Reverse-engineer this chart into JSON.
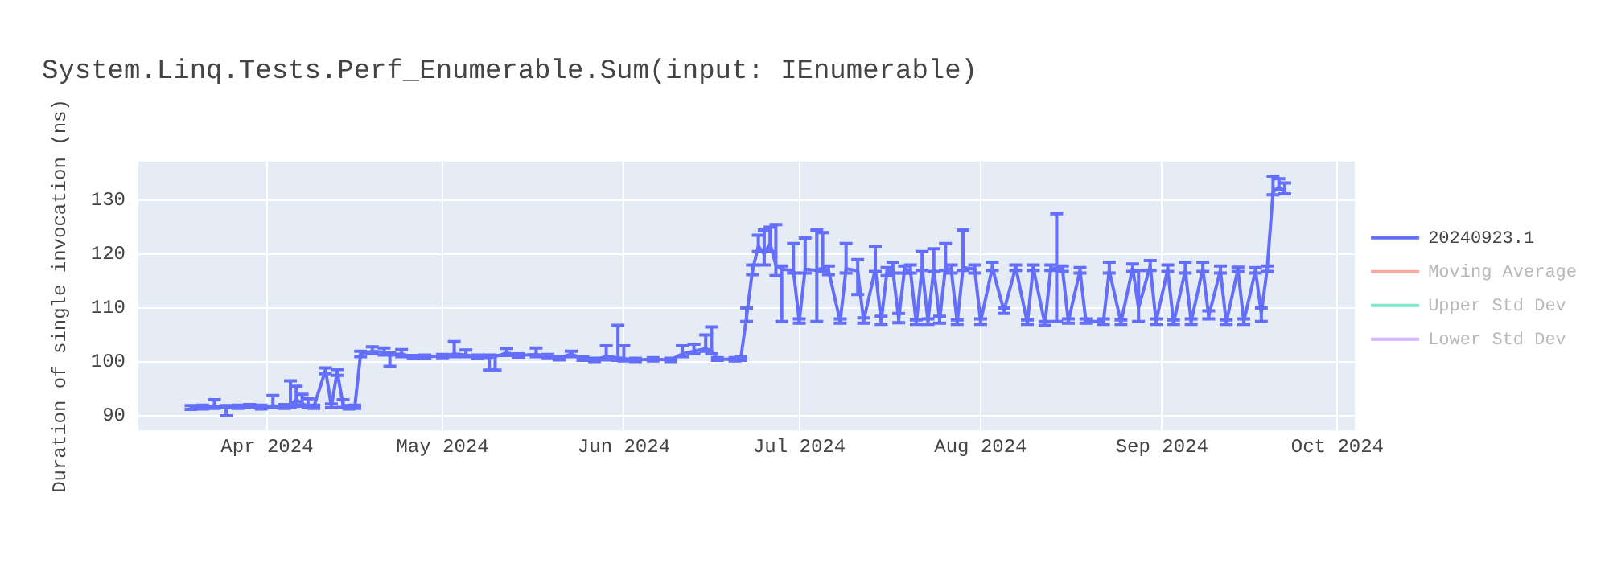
{
  "chart_data": {
    "type": "line",
    "title": "System.Linq.Tests.Perf_Enumerable.Sum(input: IEnumerable)",
    "ylabel": "Duration of single invocation (ns)",
    "xlim": [
      "2024-03-10",
      "2024-10-04"
    ],
    "xticks": [
      {
        "value": "2024-04-01",
        "label": "Apr 2024"
      },
      {
        "value": "2024-05-01",
        "label": "May 2024"
      },
      {
        "value": "2024-06-01",
        "label": "Jun 2024"
      },
      {
        "value": "2024-07-01",
        "label": "Jul 2024"
      },
      {
        "value": "2024-08-01",
        "label": "Aug 2024"
      },
      {
        "value": "2024-09-01",
        "label": "Sep 2024"
      },
      {
        "value": "2024-10-01",
        "label": "Oct 2024"
      }
    ],
    "ylim": [
      87.3,
      137.2
    ],
    "yticks": [
      90,
      100,
      110,
      120,
      130
    ],
    "grid": true,
    "legend": "top right",
    "marker": "none",
    "line_style": "solid",
    "x": [
      "2024-03-19",
      "2024-03-21",
      "2024-03-23",
      "2024-03-25",
      "2024-03-27",
      "2024-03-29",
      "2024-03-31",
      "2024-04-02",
      "2024-04-04",
      "2024-04-05",
      "2024-04-06",
      "2024-04-07",
      "2024-04-08",
      "2024-04-09",
      "2024-04-11",
      "2024-04-12",
      "2024-04-13",
      "2024-04-14",
      "2024-04-15",
      "2024-04-16",
      "2024-04-17",
      "2024-04-19",
      "2024-04-21",
      "2024-04-22",
      "2024-04-24",
      "2024-04-26",
      "2024-04-28",
      "2024-05-01",
      "2024-05-03",
      "2024-05-05",
      "2024-05-07",
      "2024-05-09",
      "2024-05-10",
      "2024-05-12",
      "2024-05-14",
      "2024-05-17",
      "2024-05-19",
      "2024-05-21",
      "2024-05-23",
      "2024-05-25",
      "2024-05-27",
      "2024-05-29",
      "2024-05-31",
      "2024-06-01",
      "2024-06-03",
      "2024-06-06",
      "2024-06-09",
      "2024-06-11",
      "2024-06-13",
      "2024-06-15",
      "2024-06-16",
      "2024-06-17",
      "2024-06-20",
      "2024-06-21",
      "2024-06-22",
      "2024-06-23",
      "2024-06-24",
      "2024-06-25",
      "2024-06-26",
      "2024-06-27",
      "2024-06-28",
      "2024-06-30",
      "2024-07-01",
      "2024-07-02",
      "2024-07-04",
      "2024-07-05",
      "2024-07-06",
      "2024-07-08",
      "2024-07-09",
      "2024-07-11",
      "2024-07-12",
      "2024-07-14",
      "2024-07-15",
      "2024-07-16",
      "2024-07-17",
      "2024-07-18",
      "2024-07-19",
      "2024-07-20",
      "2024-07-21",
      "2024-07-22",
      "2024-07-23",
      "2024-07-24",
      "2024-07-25",
      "2024-07-26",
      "2024-07-27",
      "2024-07-28",
      "2024-07-29",
      "2024-07-31",
      "2024-08-01",
      "2024-08-03",
      "2024-08-05",
      "2024-08-07",
      "2024-08-09",
      "2024-08-10",
      "2024-08-12",
      "2024-08-13",
      "2024-08-14",
      "2024-08-15",
      "2024-08-16",
      "2024-08-18",
      "2024-08-19",
      "2024-08-22",
      "2024-08-23",
      "2024-08-25",
      "2024-08-27",
      "2024-08-28",
      "2024-08-30",
      "2024-08-31",
      "2024-09-02",
      "2024-09-03",
      "2024-09-05",
      "2024-09-06",
      "2024-09-08",
      "2024-09-09",
      "2024-09-11",
      "2024-09-12",
      "2024-09-14",
      "2024-09-15",
      "2024-09-17",
      "2024-09-18",
      "2024-09-19",
      "2024-09-20",
      "2024-09-21",
      "2024-09-22"
    ],
    "series": [
      {
        "name": "20240923.1",
        "color": "#636efa",
        "values": [
          91.5,
          91.6,
          91.8,
          91.5,
          91.7,
          91.8,
          91.6,
          91.9,
          91.7,
          92.0,
          93.0,
          92.3,
          91.8,
          91.7,
          98.5,
          91.8,
          98.2,
          92.0,
          91.6,
          91.7,
          101.5,
          102.0,
          101.8,
          101.2,
          101.5,
          100.9,
          101.0,
          101.1,
          101.5,
          101.3,
          101.0,
          100.8,
          101.0,
          101.7,
          101.2,
          101.4,
          101.1,
          100.7,
          101.5,
          100.6,
          100.4,
          101.0,
          100.8,
          100.6,
          100.4,
          100.5,
          100.4,
          101.5,
          102.0,
          102.5,
          102.0,
          100.5,
          100.5,
          100.6,
          108.5,
          117.0,
          121.5,
          120.0,
          122.0,
          118.0,
          117.2,
          117.0,
          107.5,
          117.2,
          117.0,
          117.5,
          117.0,
          107.5,
          117.3,
          116.9,
          107.6,
          117.2,
          107.5,
          116.8,
          117.0,
          108.0,
          117.2,
          117.0,
          107.2,
          117.5,
          107.5,
          117.3,
          107.8,
          117.6,
          117.0,
          107.3,
          117.5,
          117.2,
          107.5,
          117.5,
          109.5,
          117.6,
          107.2,
          117.5,
          107.0,
          117.4,
          117.3,
          117.3,
          107.5,
          117.0,
          107.5,
          107.5,
          117.0,
          107.3,
          117.5,
          110.0,
          117.8,
          107.5,
          117.2,
          107.2,
          117.0,
          107.5,
          117.3,
          108.5,
          117.0,
          107.3,
          117.2,
          107.5,
          117.0,
          109.0,
          117.3,
          131.5,
          132.5,
          131.6
        ],
        "errors": [
          [
            91.2,
            91.9
          ],
          [
            91.3,
            92.0
          ],
          [
            91.4,
            93.0
          ],
          [
            90.0,
            91.9
          ],
          [
            91.4,
            92.0
          ],
          [
            91.5,
            92.1
          ],
          [
            91.3,
            92.0
          ],
          [
            91.5,
            93.8
          ],
          [
            91.4,
            92.1
          ],
          [
            91.6,
            96.5
          ],
          [
            92.0,
            95.5
          ],
          [
            91.8,
            94.0
          ],
          [
            91.5,
            93.2
          ],
          [
            91.4,
            92.0
          ],
          [
            97.8,
            98.9
          ],
          [
            91.5,
            92.2
          ],
          [
            97.5,
            98.6
          ],
          [
            91.6,
            93.0
          ],
          [
            91.3,
            91.9
          ],
          [
            91.4,
            92.0
          ],
          [
            101.0,
            102.0
          ],
          [
            101.5,
            102.8
          ],
          [
            101.3,
            102.6
          ],
          [
            99.2,
            101.8
          ],
          [
            101.0,
            102.3
          ],
          [
            100.6,
            101.2
          ],
          [
            100.7,
            101.3
          ],
          [
            100.8,
            101.4
          ],
          [
            101.0,
            103.8
          ],
          [
            101.0,
            102.2
          ],
          [
            100.7,
            101.3
          ],
          [
            98.5,
            101.3
          ],
          [
            98.5,
            101.2
          ],
          [
            101.2,
            102.5
          ],
          [
            100.9,
            101.5
          ],
          [
            101.0,
            102.6
          ],
          [
            100.8,
            101.4
          ],
          [
            100.4,
            101.0
          ],
          [
            101.0,
            102.0
          ],
          [
            100.3,
            100.9
          ],
          [
            100.1,
            100.7
          ],
          [
            100.4,
            103.0
          ],
          [
            100.3,
            106.8
          ],
          [
            100.2,
            103.0
          ],
          [
            100.1,
            100.7
          ],
          [
            100.2,
            100.8
          ],
          [
            100.1,
            100.7
          ],
          [
            101.0,
            103.0
          ],
          [
            101.5,
            103.3
          ],
          [
            102.0,
            105.0
          ],
          [
            101.5,
            106.5
          ],
          [
            100.3,
            100.8
          ],
          [
            100.2,
            100.8
          ],
          [
            100.3,
            100.9
          ],
          [
            107.5,
            110.0
          ],
          [
            116.2,
            118.0
          ],
          [
            120.5,
            123.5
          ],
          [
            118.0,
            124.5
          ],
          [
            120.5,
            125.0
          ],
          [
            116.0,
            125.5
          ],
          [
            107.5,
            117.8
          ],
          [
            116.5,
            122.0
          ],
          [
            107.2,
            108.0
          ],
          [
            116.5,
            123.0
          ],
          [
            107.5,
            124.5
          ],
          [
            116.8,
            124.0
          ],
          [
            116.2,
            117.8
          ],
          [
            107.2,
            108.0
          ],
          [
            116.5,
            122.0
          ],
          [
            112.5,
            119.0
          ],
          [
            107.2,
            108.2
          ],
          [
            116.8,
            121.5
          ],
          [
            107.0,
            108.5
          ],
          [
            116.0,
            117.5
          ],
          [
            116.5,
            118.5
          ],
          [
            107.3,
            109.0
          ],
          [
            116.5,
            117.8
          ],
          [
            116.5,
            118.0
          ],
          [
            107.0,
            107.8
          ],
          [
            117.0,
            120.5
          ],
          [
            107.0,
            108.0
          ],
          [
            116.8,
            121.0
          ],
          [
            107.2,
            108.5
          ],
          [
            117.0,
            122.0
          ],
          [
            116.5,
            118.0
          ],
          [
            107.0,
            107.8
          ],
          [
            117.0,
            124.5
          ],
          [
            116.5,
            118.0
          ],
          [
            107.0,
            108.0
          ],
          [
            117.0,
            118.5
          ],
          [
            109.0,
            110.0
          ],
          [
            117.0,
            118.0
          ],
          [
            107.0,
            107.8
          ],
          [
            117.0,
            118.0
          ],
          [
            106.8,
            107.5
          ],
          [
            117.0,
            118.0
          ],
          [
            107.5,
            127.5
          ],
          [
            116.8,
            117.8
          ],
          [
            107.2,
            108.0
          ],
          [
            116.5,
            117.5
          ],
          [
            107.2,
            108.0
          ],
          [
            107.0,
            108.0
          ],
          [
            116.5,
            118.5
          ],
          [
            107.0,
            107.8
          ],
          [
            116.8,
            118.2
          ],
          [
            107.5,
            117.0
          ],
          [
            117.0,
            118.8
          ],
          [
            107.0,
            108.0
          ],
          [
            116.8,
            118.0
          ],
          [
            107.0,
            107.8
          ],
          [
            116.5,
            118.5
          ],
          [
            107.0,
            108.0
          ],
          [
            116.8,
            118.5
          ],
          [
            108.0,
            109.5
          ],
          [
            116.5,
            117.8
          ],
          [
            107.0,
            107.8
          ],
          [
            116.8,
            117.6
          ],
          [
            107.0,
            108.0
          ],
          [
            116.5,
            117.5
          ],
          [
            107.5,
            110.0
          ],
          [
            116.8,
            117.8
          ],
          [
            131.0,
            134.5
          ],
          [
            132.0,
            134.0
          ],
          [
            131.2,
            133.2
          ]
        ]
      },
      {
        "name": "Moving Average",
        "color": "#f7aa9d",
        "values": [
          null,
          null,
          null,
          null,
          null,
          null,
          null,
          null,
          null,
          null,
          null,
          null,
          null,
          null,
          null,
          null,
          null,
          null,
          null,
          null,
          null,
          null,
          null,
          null,
          null,
          null,
          null,
          null,
          null,
          null,
          null,
          null,
          null,
          null,
          null,
          null,
          null,
          null,
          null,
          null,
          null,
          null,
          null,
          null,
          null,
          null,
          null,
          null,
          null,
          null,
          null,
          null,
          null,
          null,
          null,
          null,
          null,
          null,
          null,
          null,
          null,
          null,
          null,
          null,
          null,
          null,
          null,
          null,
          null,
          null,
          null,
          null,
          null,
          null,
          null,
          null,
          null,
          null,
          null,
          null,
          null,
          null,
          null,
          null,
          null,
          null,
          null,
          null,
          null,
          null,
          null,
          null,
          null,
          null,
          null,
          null,
          null,
          null,
          null,
          null,
          null,
          null,
          null,
          null,
          null,
          null,
          null,
          null,
          null,
          null,
          null,
          null,
          null,
          null,
          null,
          null,
          null,
          null,
          null,
          null,
          null,
          null,
          null,
          null
        ]
      },
      {
        "name": "Upper Std Dev",
        "color": "#80e6cb",
        "values": [
          null,
          null,
          null,
          null,
          null,
          null,
          null,
          null,
          null,
          null,
          null,
          null,
          null,
          null,
          null,
          null,
          null,
          null,
          null,
          null,
          null,
          null,
          null,
          null,
          null,
          null,
          null,
          null,
          null,
          null,
          null,
          null,
          null,
          null,
          null,
          null,
          null,
          null,
          null,
          null,
          null,
          null,
          null,
          null,
          null,
          null,
          null,
          null,
          null,
          null,
          null,
          null,
          null,
          null,
          null,
          null,
          null,
          null,
          null,
          null,
          null,
          null,
          null,
          null,
          null,
          null,
          null,
          null,
          null,
          null,
          null,
          null,
          null,
          null,
          null,
          null,
          null,
          null,
          null,
          null,
          null,
          null,
          null,
          null,
          null,
          null,
          null,
          null,
          null,
          null,
          null,
          null,
          null,
          null,
          null,
          null,
          null,
          null,
          null,
          null,
          null,
          null,
          null,
          null,
          null,
          null,
          null,
          null,
          null,
          null,
          null,
          null,
          null,
          null,
          null,
          null,
          null,
          null,
          null,
          null,
          null,
          null,
          null,
          null
        ]
      },
      {
        "name": "Lower Std Dev",
        "color": "#d5b1fd",
        "values": [
          null,
          null,
          null,
          null,
          null,
          null,
          null,
          null,
          null,
          null,
          null,
          null,
          null,
          null,
          null,
          null,
          null,
          null,
          null,
          null,
          null,
          null,
          null,
          null,
          null,
          null,
          null,
          null,
          null,
          null,
          null,
          null,
          null,
          null,
          null,
          null,
          null,
          null,
          null,
          null,
          null,
          null,
          null,
          null,
          null,
          null,
          null,
          null,
          null,
          null,
          null,
          null,
          null,
          null,
          null,
          null,
          null,
          null,
          null,
          null,
          null,
          null,
          null,
          null,
          null,
          null,
          null,
          null,
          null,
          null,
          null,
          null,
          null,
          null,
          null,
          null,
          null,
          null,
          null,
          null,
          null,
          null,
          null,
          null,
          null,
          null,
          null,
          null,
          null,
          null,
          null,
          null,
          null,
          null,
          null,
          null,
          null,
          null,
          null,
          null,
          null,
          null,
          null,
          null,
          null,
          null,
          null,
          null,
          null,
          null,
          null,
          null,
          null,
          null,
          null,
          null,
          null,
          null,
          null,
          null,
          null,
          null,
          null,
          null
        ]
      }
    ]
  }
}
